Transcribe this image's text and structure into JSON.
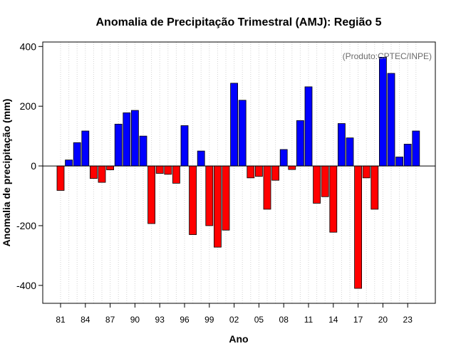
{
  "chart_data": {
    "type": "bar",
    "title": "Anomalia de Precipitação Trimestral (AMJ): Região 5",
    "xlabel": "Ano",
    "ylabel": "Anomalia de precipitação (mm)",
    "annotation": "(Produto:CPTEC/INPE)",
    "ylim": [
      -460,
      415
    ],
    "yticks": [
      "400",
      "200",
      "0",
      "-200",
      "-400"
    ],
    "ytick_values": [
      400,
      200,
      0,
      -200,
      -400
    ],
    "xtick_labels": [
      "81",
      "84",
      "87",
      "90",
      "93",
      "96",
      "99",
      "02",
      "05",
      "08",
      "11",
      "14",
      "17",
      "20",
      "23"
    ],
    "xtick_positions": [
      1981,
      1984,
      1987,
      1990,
      1993,
      1996,
      1999,
      2002,
      2005,
      2008,
      2011,
      2014,
      2017,
      2020,
      2023
    ],
    "grid": "vertical-dotted",
    "positive_color": "#0000ff",
    "negative_color": "#ff0000",
    "categories": [
      1981,
      1982,
      1983,
      1984,
      1985,
      1986,
      1987,
      1988,
      1989,
      1990,
      1991,
      1992,
      1993,
      1994,
      1995,
      1996,
      1997,
      1998,
      1999,
      2000,
      2001,
      2002,
      2003,
      2004,
      2005,
      2006,
      2007,
      2008,
      2009,
      2010,
      2011,
      2012,
      2013,
      2014,
      2015,
      2016,
      2017,
      2018,
      2019,
      2020,
      2021,
      2022,
      2023,
      2024
    ],
    "values": [
      -82,
      20,
      78,
      117,
      -42,
      -55,
      -13,
      140,
      178,
      186,
      100,
      -193,
      -25,
      -28,
      -58,
      135,
      -230,
      50,
      -200,
      -272,
      -215,
      277,
      220,
      -40,
      -35,
      -145,
      -48,
      55,
      -12,
      152,
      265,
      -125,
      -103,
      -222,
      142,
      94,
      -410,
      -40,
      -145,
      364,
      310,
      30,
      73,
      117
    ]
  }
}
